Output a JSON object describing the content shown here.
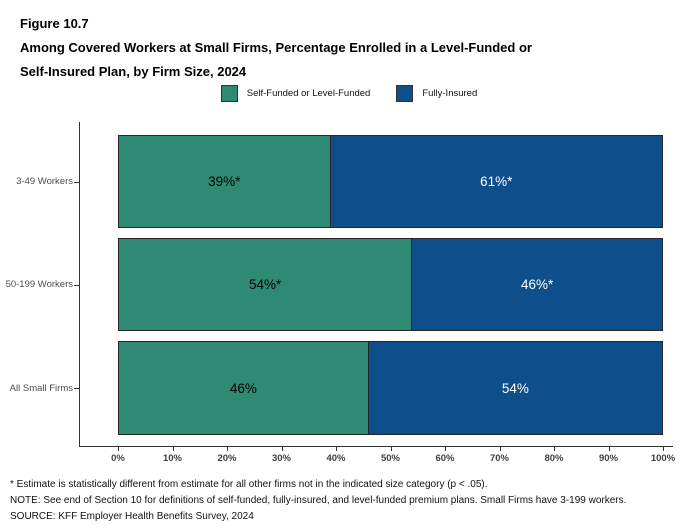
{
  "header": {
    "figure_label": "Figure 10.7",
    "title_line1": "Among Covered Workers at Small Firms, Percentage Enrolled in a Level-Funded or",
    "title_line2": "Self-Insured Plan, by Firm Size, 2024"
  },
  "colors": {
    "self_funded_green": "#2F8A74",
    "fully_insured_blue": "#0E4E8B",
    "bar_border": "#262626",
    "axis_line": "#333333"
  },
  "chart_data": {
    "type": "bar",
    "orientation": "horizontal",
    "stacked": true,
    "title": "Among Covered Workers at Small Firms, Percentage Enrolled in a Level-Funded or Self-Insured Plan, by Firm Size, 2024",
    "categories": [
      "3-49 Workers",
      "50-199 Workers",
      "All Small Firms"
    ],
    "series": [
      {
        "name": "Self-Funded or Level-Funded",
        "color": "#2F8A74",
        "label_color": "#000000",
        "values": [
          39,
          54,
          46
        ],
        "labels": [
          "39%*",
          "54%*",
          "46%"
        ]
      },
      {
        "name": "Fully-Insured",
        "color": "#0E4E8B",
        "label_color": "#ffffff",
        "values": [
          61,
          46,
          54
        ],
        "labels": [
          "61%*",
          "46%*",
          "54%"
        ]
      }
    ],
    "x_axis": {
      "range": [
        0,
        100
      ],
      "ticks": [
        "0%",
        "10%",
        "20%",
        "30%",
        "40%",
        "50%",
        "60%",
        "70%",
        "80%",
        "90%",
        "100%"
      ]
    },
    "grid": false,
    "legend_position": "top-center"
  },
  "notes": {
    "footnote": "* Estimate is statistically different from estimate for all other firms not in the indicated size category (p < .05).",
    "note": "NOTE: See end of Section 10 for definitions of self-funded, fully-insured, and level-funded premium plans. Small Firms have 3-199 workers.",
    "source": "SOURCE: KFF Employer Health Benefits Survey, 2024"
  }
}
